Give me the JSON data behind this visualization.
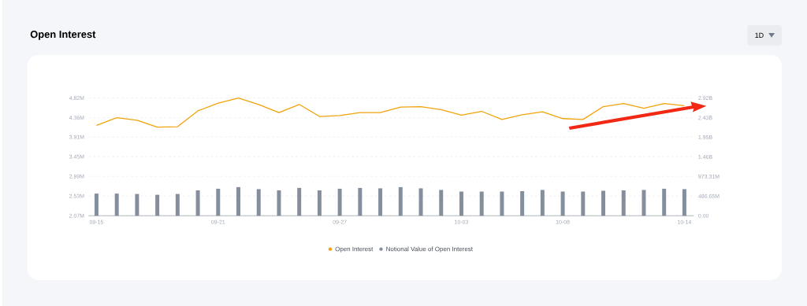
{
  "chart_data": {
    "type": "line",
    "title": "Open Interest",
    "annotations": [
      "1D"
    ],
    "categories": [
      "09-15",
      null,
      null,
      null,
      null,
      null,
      "09-21",
      null,
      null,
      null,
      null,
      null,
      "09-27",
      null,
      null,
      null,
      null,
      null,
      "10-03",
      null,
      null,
      null,
      null,
      "10-08",
      null,
      null,
      null,
      null,
      null,
      "10-14"
    ],
    "series": [
      {
        "name": "Open Interest",
        "color": "#f0a30a",
        "values": [
          4180000,
          4360000,
          4300000,
          4140000,
          4150000,
          4520000,
          4700000,
          4820000,
          4670000,
          4480000,
          4670000,
          4390000,
          4410000,
          4480000,
          4480000,
          4610000,
          4620000,
          4550000,
          4420000,
          4510000,
          4320000,
          4430000,
          4500000,
          4340000,
          4320000,
          4620000,
          4690000,
          4580000,
          4690000,
          4640000
        ]
      },
      {
        "name": "Notional Value of Open Interest",
        "type": "bar",
        "axis": "y2",
        "color": "#848e9c",
        "values": [
          550000000,
          550000000,
          540000000,
          520000000,
          540000000,
          630000000,
          670000000,
          710000000,
          660000000,
          630000000,
          690000000,
          630000000,
          670000000,
          690000000,
          680000000,
          710000000,
          680000000,
          640000000,
          600000000,
          600000000,
          600000000,
          610000000,
          640000000,
          600000000,
          600000000,
          620000000,
          630000000,
          640000000,
          670000000,
          660000000
        ]
      }
    ],
    "ylim": [
      2070000,
      4820000
    ],
    "yticks": [
      {
        "value": 2070000,
        "label": "2.07M"
      },
      {
        "value": 2530000,
        "label": "2.53M"
      },
      {
        "value": 2990000,
        "label": "2.99M"
      },
      {
        "value": 3450000,
        "label": "3.45M"
      },
      {
        "value": 3910000,
        "label": "3.91M"
      },
      {
        "value": 4360000,
        "label": "4.36M"
      },
      {
        "value": 4820000,
        "label": "4.82M"
      }
    ],
    "y2lim": [
      0,
      2920000000
    ],
    "y2ticks": [
      {
        "value": 0,
        "label": "0.00"
      },
      {
        "value": 486650000,
        "label": "486.65M"
      },
      {
        "value": 973310000,
        "label": "973.31M"
      },
      {
        "value": 1460000000,
        "label": "1.46B"
      },
      {
        "value": 1950000000,
        "label": "1.95B"
      },
      {
        "value": 2430000000,
        "label": "2.43B"
      },
      {
        "value": 2920000000,
        "label": "2.92B"
      }
    ],
    "grid": "y",
    "legend": "bottom"
  }
}
